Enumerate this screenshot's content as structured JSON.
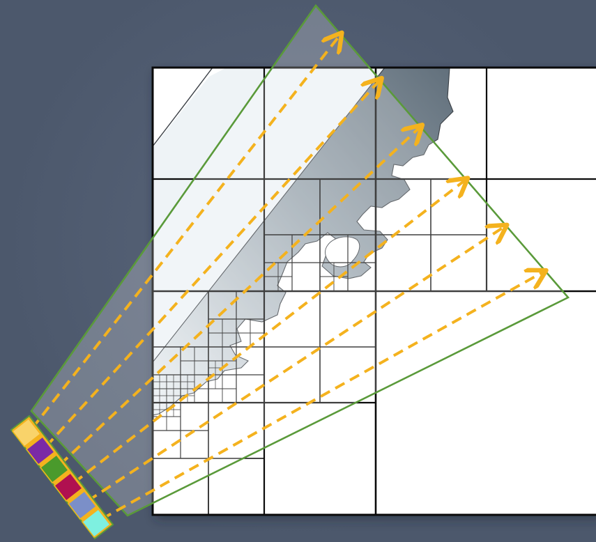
{
  "diagram": {
    "colors": {
      "background": "#4c586c",
      "grid_line": "#000000",
      "cell_fill": "#ffffff",
      "land_fill_light": "#eef3f6",
      "land_fill_dark": "#6f7d88",
      "frustum_stroke": "#5a9a3a",
      "arrow": "#f4b21e"
    },
    "palette_cells": [
      {
        "name": "yellow",
        "color": "#f9d36a"
      },
      {
        "name": "purple",
        "color": "#7a2aa6"
      },
      {
        "name": "green",
        "color": "#4a9a2c"
      },
      {
        "name": "crimson",
        "color": "#b01050"
      },
      {
        "name": "slate-blue",
        "color": "#7b8fc8"
      },
      {
        "name": "aqua",
        "color": "#7ef0e0"
      }
    ]
  }
}
